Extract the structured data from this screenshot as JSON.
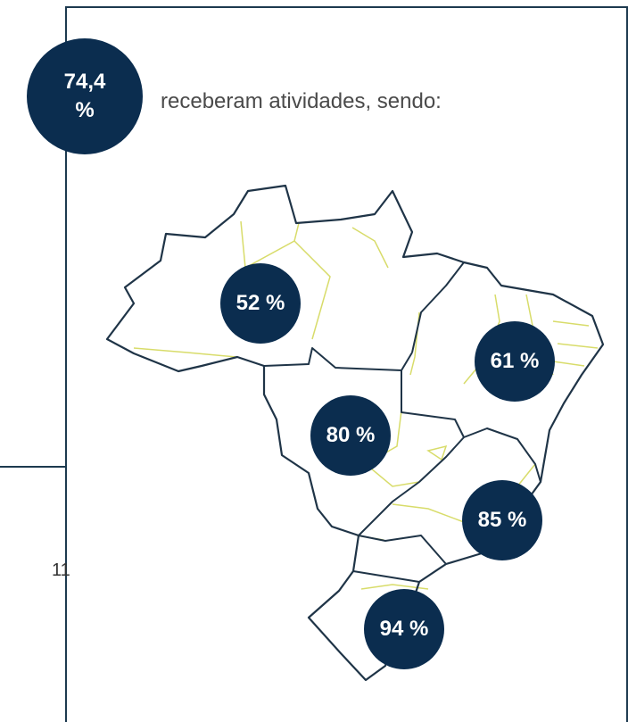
{
  "headline": {
    "value": "74,4 %",
    "text": "receberam atividades, sendo:"
  },
  "regions": [
    {
      "label": "52 %"
    },
    {
      "label": "61 %"
    },
    {
      "label": "80 %"
    },
    {
      "label": "85 %"
    },
    {
      "label": "94 %"
    }
  ],
  "page_number": "11"
}
